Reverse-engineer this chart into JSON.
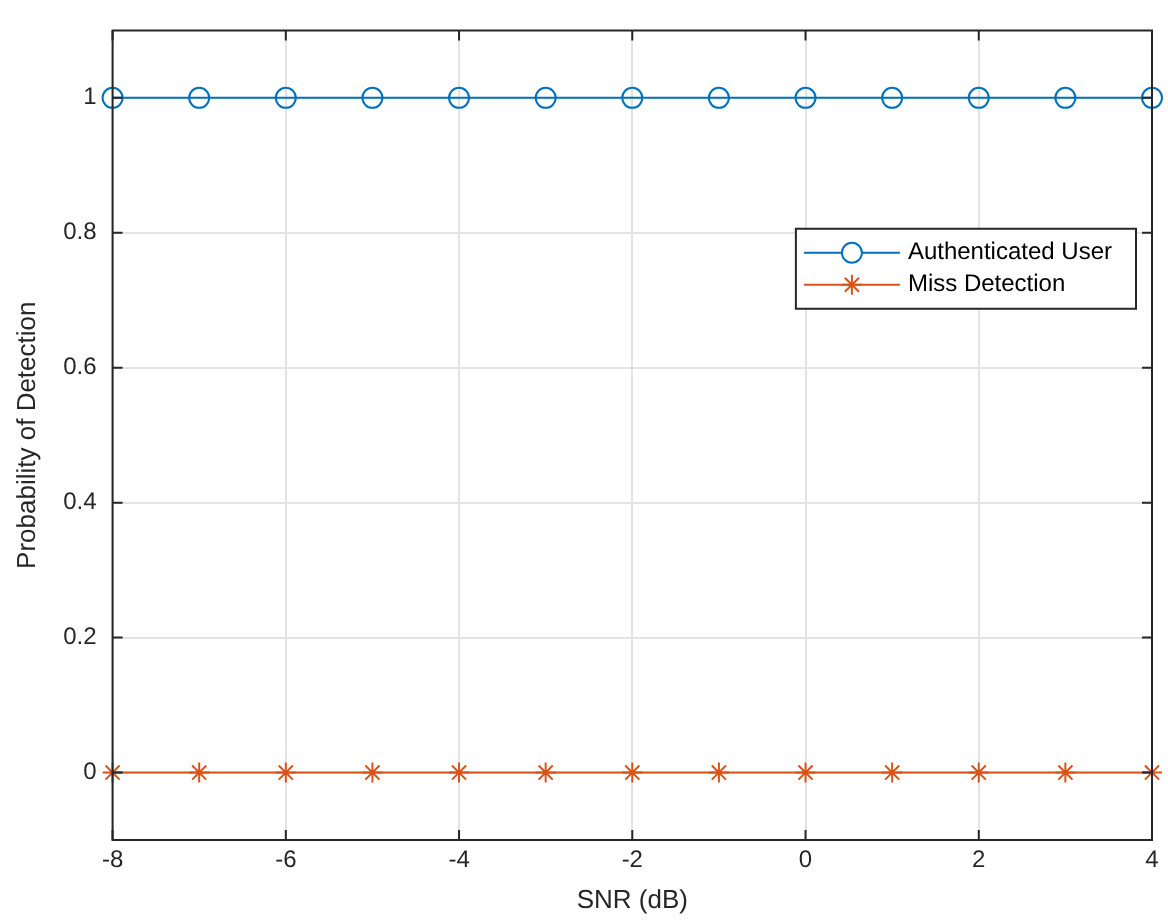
{
  "chart_data": {
    "type": "line",
    "xlabel": "SNR (dB)",
    "ylabel": "Probability of Detection",
    "x": [
      -8,
      -7,
      -6,
      -5,
      -4,
      -3,
      -2,
      -1,
      0,
      1,
      2,
      3,
      4
    ],
    "series": [
      {
        "name": "Authenticated User",
        "color": "#0072bd",
        "marker": "circle",
        "values": [
          1,
          1,
          1,
          1,
          1,
          1,
          1,
          1,
          1,
          1,
          1,
          1,
          1
        ]
      },
      {
        "name": "Miss Detection",
        "color": "#d95319",
        "marker": "cross",
        "values": [
          0,
          0,
          0,
          0,
          0,
          0,
          0,
          0,
          0,
          0,
          0,
          0,
          0
        ]
      }
    ],
    "xlim": [
      -8,
      4
    ],
    "xticks": [
      -8,
      -6,
      -4,
      -2,
      0,
      2,
      4
    ],
    "ylim": [
      -0.1,
      1.1
    ],
    "yticks": [
      0,
      0.2,
      0.4,
      0.6,
      0.8,
      1
    ],
    "grid": true,
    "legend": "right",
    "line_style": "solid"
  }
}
